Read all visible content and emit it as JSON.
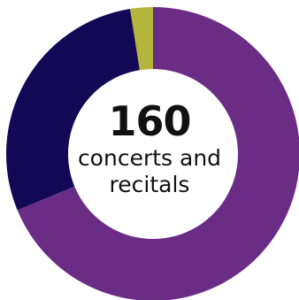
{
  "chart_data": {
    "type": "pie",
    "variant": "donut",
    "title": "",
    "center_number": "160",
    "center_text_line1": "concerts and",
    "center_text_line2": "recitals",
    "slices": [
      {
        "value": 110,
        "color": "#6b2c86"
      },
      {
        "value": 46,
        "color": "#130856"
      },
      {
        "value": 4,
        "color": "#b4b53a"
      }
    ],
    "background": "#ffffff"
  }
}
